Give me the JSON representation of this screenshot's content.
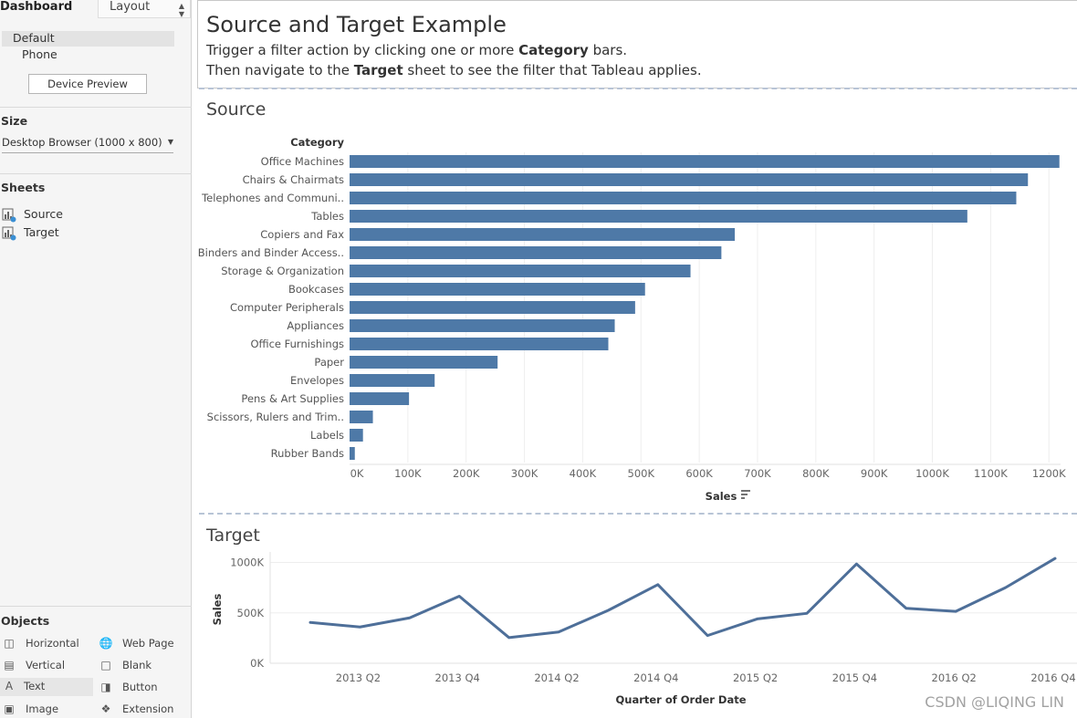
{
  "left_panel": {
    "tab_dashboard": "Dashboard",
    "tab_layout": "Layout",
    "devices": [
      "Default",
      "Phone"
    ],
    "device_preview_label": "Device Preview",
    "size_title": "Size",
    "size_value": "Desktop Browser (1000 x 800)",
    "sheets_title": "Sheets",
    "sheets": [
      "Source",
      "Target"
    ],
    "objects_title": "Objects",
    "objects": {
      "horizontal": "Horizontal",
      "web_page": "Web Page",
      "vertical": "Vertical",
      "blank": "Blank",
      "text": "Text",
      "button": "Button",
      "image": "Image",
      "extension": "Extension"
    }
  },
  "dashboard": {
    "title": "Source and Target Example",
    "line1_pre": "Trigger a filter action by clicking one or more ",
    "line1_bold": "Category",
    "line1_post": " bars.",
    "line2_pre": "Then navigate to the ",
    "line2_bold": "Target",
    "line2_post": " sheet to see the filter that Tableau applies.",
    "source_title": "Source",
    "target_title": "Target"
  },
  "watermark": "CSDN @LIQING LIN",
  "colors": {
    "bar": "#4e79a7",
    "line": "#4e6f99",
    "grid": "#eeeeee"
  },
  "chart_data": [
    {
      "type": "bar",
      "orientation": "horizontal",
      "header": "Category",
      "xlabel": "Sales",
      "xlim": [
        0,
        1220000
      ],
      "ticks": [
        0,
        100000,
        200000,
        300000,
        400000,
        500000,
        600000,
        700000,
        800000,
        900000,
        1000000,
        1100000,
        1200000
      ],
      "tick_labels": [
        "0K",
        "100K",
        "200K",
        "300K",
        "400K",
        "500K",
        "600K",
        "700K",
        "800K",
        "900K",
        "1000K",
        "1100K",
        "1200K"
      ],
      "categories": [
        "Office Machines",
        "Chairs & Chairmats",
        "Telephones and Communi..",
        "Tables",
        "Copiers and Fax",
        "Binders and Binder Access..",
        "Storage & Organization",
        "Bookcases",
        "Computer Peripherals",
        "Appliances",
        "Office Furnishings",
        "Paper",
        "Envelopes",
        "Pens & Art Supplies",
        "Scissors, Rulers and Trim..",
        "Labels",
        "Rubber Bands"
      ],
      "values": [
        1218000,
        1164000,
        1144000,
        1060000,
        661000,
        638000,
        585000,
        507000,
        490000,
        455000,
        444000,
        254000,
        146000,
        102000,
        40000,
        23000,
        9000
      ]
    },
    {
      "type": "line",
      "xlabel": "Quarter of Order Date",
      "ylabel": "Sales",
      "ylim": [
        0,
        1050000
      ],
      "y_ticks": [
        0,
        500000,
        1000000
      ],
      "y_tick_labels": [
        "0K",
        "500K",
        "1000K"
      ],
      "x": [
        "2013 Q1",
        "2013 Q2",
        "2013 Q3",
        "2013 Q4",
        "2014 Q1",
        "2014 Q2",
        "2014 Q3",
        "2014 Q4",
        "2015 Q1",
        "2015 Q2",
        "2015 Q3",
        "2015 Q4",
        "2016 Q1",
        "2016 Q2",
        "2016 Q3",
        "2016 Q4"
      ],
      "x_tick_labels": [
        "2013 Q2",
        "2013 Q4",
        "2014 Q2",
        "2014 Q4",
        "2015 Q2",
        "2015 Q4",
        "2016 Q2",
        "2016 Q4"
      ],
      "values": [
        405000,
        360000,
        450000,
        665000,
        255000,
        310000,
        525000,
        780000,
        275000,
        440000,
        495000,
        985000,
        545000,
        515000,
        750000,
        1040000
      ]
    }
  ]
}
